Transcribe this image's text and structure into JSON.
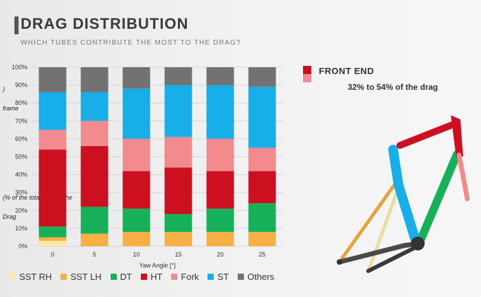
{
  "header": {
    "title": "DRAG DISTRIBUTION",
    "subtitle": "WHICH TUBES CONTRIBUTE THE MOST TO THE DRAG?"
  },
  "ylabel_lines": [
    ")",
    "frame",
    "(% of the total drag of the",
    "Drag"
  ],
  "front_end": {
    "label": "FRONT END",
    "subtitle": "32% to 54% of the drag",
    "colors": [
      "#cc1020",
      "#f28a8e"
    ]
  },
  "chart_data": {
    "type": "bar",
    "stacked": true,
    "categories": [
      "0",
      "5",
      "10",
      "15",
      "20",
      "25"
    ],
    "xlabel": "Yaw Angle [°]",
    "ylabel": "Drag (% of the total drag of the frame)",
    "ylim": [
      0,
      100
    ],
    "yticks": [
      "0%",
      "10%",
      "20%",
      "30%",
      "40%",
      "50%",
      "60%",
      "70%",
      "80%",
      "90%",
      "100%"
    ],
    "series": [
      {
        "name": "SST RH",
        "color": "#f7eaa6",
        "values": [
          3,
          0,
          0,
          0,
          0,
          0
        ]
      },
      {
        "name": "SST LH",
        "color": "#f6b044",
        "values": [
          2,
          7,
          8,
          8,
          8,
          8
        ]
      },
      {
        "name": "DT",
        "color": "#17b05a",
        "values": [
          6,
          15,
          13,
          10,
          13,
          16
        ]
      },
      {
        "name": "HT",
        "color": "#cc1020",
        "values": [
          43,
          34,
          21,
          26,
          21,
          18
        ]
      },
      {
        "name": "Fork",
        "color": "#f28a8e",
        "values": [
          11,
          14,
          18,
          17,
          18,
          13
        ]
      },
      {
        "name": "ST",
        "color": "#17aee9",
        "values": [
          21,
          16,
          28,
          29,
          30,
          34
        ]
      },
      {
        "name": "Others",
        "color": "#727272",
        "values": [
          14,
          14,
          12,
          10,
          10,
          11
        ]
      }
    ]
  }
}
